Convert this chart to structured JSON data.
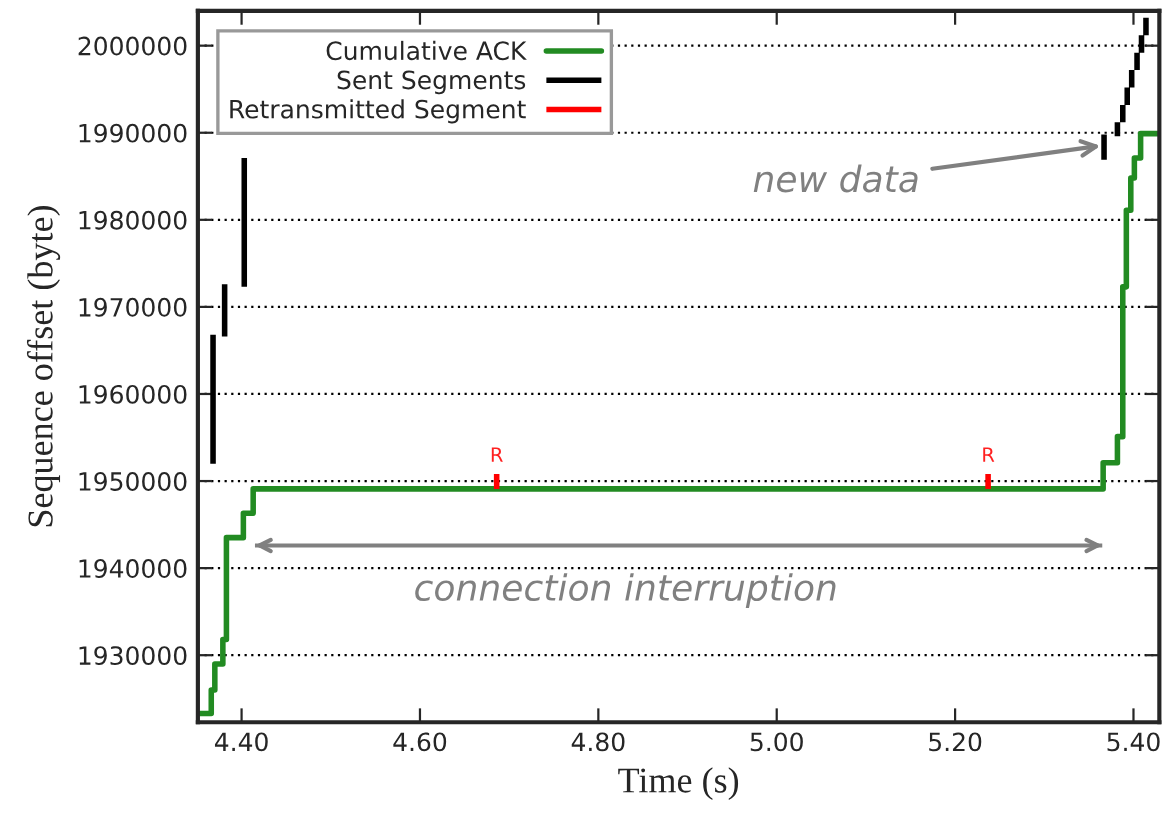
{
  "chart_data": {
    "type": "line",
    "xlabel": "Time (s)",
    "ylabel": "Sequence offset (byte)",
    "xlim": [
      4.351,
      5.429
    ],
    "xticks": [
      {
        "value": 4.4,
        "label": "4.40"
      },
      {
        "value": 4.6,
        "label": "4.60"
      },
      {
        "value": 4.8,
        "label": "4.80"
      },
      {
        "value": 5.0,
        "label": "5.00"
      },
      {
        "value": 5.2,
        "label": "5.20"
      },
      {
        "value": 5.4,
        "label": "5.40"
      }
    ],
    "ylim": [
      1922300,
      2004000
    ],
    "yticks": [
      1930000,
      1940000,
      1950000,
      1960000,
      1970000,
      1980000,
      1990000,
      2000000
    ],
    "grid": "y",
    "legend": "top left",
    "series": [
      {
        "name": "Cumulative ACK",
        "type": "step",
        "color": "#228b22",
        "x": [
          4.351,
          4.366,
          4.37,
          4.379,
          4.383,
          4.402,
          4.413,
          5.366,
          5.382,
          5.388,
          5.392,
          5.397,
          5.401,
          5.408,
          5.429
        ],
        "values": [
          1923300,
          1926000,
          1929000,
          1931800,
          1943500,
          1946300,
          1949100,
          1952100,
          1955100,
          1972300,
          1981100,
          1984800,
          1987100,
          1989900,
          1989900
        ]
      },
      {
        "name": "Sent Segments",
        "color": "#000000",
        "x": [
          4.368,
          4.368,
          null,
          4.381,
          4.381,
          null,
          4.403,
          4.403,
          null,
          5.367,
          5.367,
          null,
          5.382,
          5.382,
          null,
          5.388,
          5.388,
          null,
          5.393,
          5.393,
          null,
          5.398,
          5.398,
          null,
          5.404,
          5.404,
          null,
          5.409,
          5.409,
          null,
          5.414,
          5.414
        ],
        "values": [
          1952000,
          1966800,
          null,
          1966600,
          1972600,
          null,
          1972300,
          1987100,
          null,
          1986900,
          1989800,
          null,
          1989600,
          1991200,
          null,
          1991200,
          1993200,
          null,
          1993200,
          1995200,
          null,
          1995200,
          1997200,
          null,
          1997200,
          1999200,
          null,
          1999200,
          2001200,
          null,
          2001200,
          2003200
        ]
      },
      {
        "name": "Retransmitted Segment",
        "color": "#ff0000",
        "x": [
          4.686,
          4.686,
          null,
          5.237,
          5.237
        ],
        "values": [
          1949100,
          1950800,
          null,
          1949100,
          1950800
        ]
      },
      {
        "type": "line",
        "color": "#808080",
        "x": [
          4.415,
          5.365
        ],
        "values": [
          1942600,
          1942600
        ]
      }
    ],
    "annotations": [
      {
        "text": "R",
        "x": 4.686,
        "y": 1950800
      },
      {
        "text": "R",
        "x": 5.237,
        "y": 1950800
      },
      {
        "text": "new data",
        "x": 5.363,
        "y": 1988500
      },
      "connection interruption"
    ]
  }
}
